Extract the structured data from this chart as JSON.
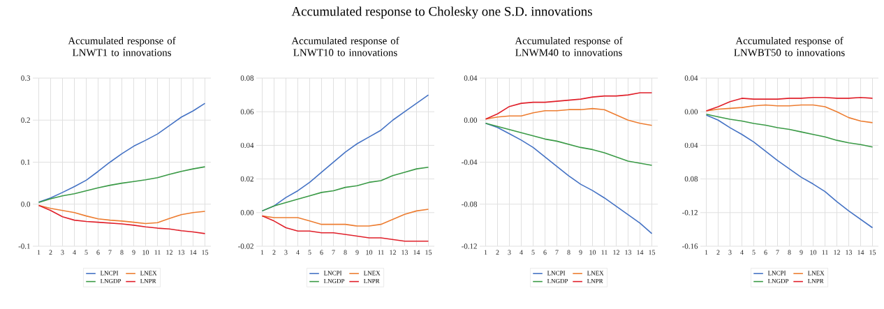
{
  "chart_data": [
    {
      "type": "line",
      "title": "Accumulated response of LNWT1 to innovations",
      "annotations": [
        "Accumulated response to Cholesky one S.D. innovations"
      ],
      "categories": [
        "1",
        "2",
        "3",
        "4",
        "5",
        "6",
        "7",
        "8",
        "9",
        "10",
        "11",
        "12",
        "13",
        "14",
        "15"
      ],
      "ylim": [
        -0.1,
        0.3
      ],
      "yticks": [
        {
          "value": -0.1,
          "label": "-0.1"
        },
        {
          "value": 0,
          "label": "0.0"
        },
        0.1,
        0.2,
        0.3
      ],
      "grid": true,
      "legend": "bottom",
      "series": [
        {
          "name": "LNCPI",
          "color": "#4472c4",
          "values": [
            0.005,
            0.015,
            0.028,
            0.042,
            0.057,
            0.078,
            0.1,
            0.12,
            0.138,
            0.152,
            0.167,
            0.187,
            0.207,
            0.222,
            0.24
          ]
        },
        {
          "name": "LNEX",
          "color": "#ed7d31",
          "values": [
            -0.003,
            -0.01,
            -0.015,
            -0.02,
            -0.028,
            -0.035,
            -0.038,
            -0.04,
            -0.043,
            -0.046,
            -0.044,
            -0.034,
            -0.025,
            -0.02,
            -0.017
          ]
        },
        {
          "name": "LNGDP",
          "color": "#3a9a46",
          "values": [
            0.004,
            0.013,
            0.02,
            0.025,
            0.032,
            0.039,
            0.045,
            0.05,
            0.054,
            0.058,
            0.063,
            0.071,
            0.078,
            0.084,
            0.089
          ]
        },
        {
          "name": "LNPR",
          "color": "#e0202a",
          "values": [
            -0.003,
            -0.015,
            -0.03,
            -0.038,
            -0.041,
            -0.043,
            -0.045,
            -0.047,
            -0.05,
            -0.054,
            -0.057,
            -0.059,
            -0.063,
            -0.066,
            -0.07
          ]
        }
      ]
    },
    {
      "type": "line",
      "title": "Accumulated response of LNWT10 to innovations",
      "categories": [
        "1",
        "2",
        "3",
        "4",
        "5",
        "6",
        "7",
        "8",
        "9",
        "10",
        "11",
        "12",
        "13",
        "14",
        "15"
      ],
      "ylim": [
        -0.02,
        0.08
      ],
      "yticks": [
        -0.02,
        {
          "value": 0,
          "label": "0.00"
        },
        0.02,
        0.04,
        0.06,
        0.08
      ],
      "grid": true,
      "legend": "bottom",
      "series": [
        {
          "name": "LNCPI",
          "color": "#4472c4",
          "values": [
            0.001,
            0.004,
            0.009,
            0.013,
            0.018,
            0.024,
            0.03,
            0.036,
            0.041,
            0.045,
            0.049,
            0.055,
            0.06,
            0.065,
            0.07
          ]
        },
        {
          "name": "LNEX",
          "color": "#ed7d31",
          "values": [
            -0.002,
            -0.003,
            -0.003,
            -0.003,
            -0.005,
            -0.007,
            -0.007,
            -0.007,
            -0.008,
            -0.008,
            -0.007,
            -0.004,
            -0.001,
            0.001,
            0.002
          ]
        },
        {
          "name": "LNGDP",
          "color": "#3a9a46",
          "values": [
            0.001,
            0.004,
            0.006,
            0.008,
            0.01,
            0.012,
            0.013,
            0.015,
            0.016,
            0.018,
            0.019,
            0.022,
            0.024,
            0.026,
            0.027
          ]
        },
        {
          "name": "LNPR",
          "color": "#e0202a",
          "values": [
            -0.002,
            -0.005,
            -0.009,
            -0.011,
            -0.011,
            -0.012,
            -0.012,
            -0.013,
            -0.014,
            -0.015,
            -0.015,
            -0.016,
            -0.017,
            -0.017,
            -0.017
          ]
        }
      ]
    },
    {
      "type": "line",
      "title": "Accumulated response of LNWM40 to innovations",
      "categories": [
        "1",
        "2",
        "3",
        "4",
        "5",
        "6",
        "7",
        "8",
        "9",
        "10",
        "11",
        "12",
        "13",
        "14",
        "15"
      ],
      "ylim": [
        -0.12,
        0.04
      ],
      "yticks": [
        -0.12,
        -0.08,
        -0.04,
        {
          "value": 0,
          "label": "0.00"
        },
        0.04
      ],
      "grid": true,
      "legend": "bottom",
      "series": [
        {
          "name": "LNCPI",
          "color": "#4472c4",
          "values": [
            -0.003,
            -0.007,
            -0.013,
            -0.019,
            -0.026,
            -0.035,
            -0.044,
            -0.053,
            -0.061,
            -0.067,
            -0.074,
            -0.082,
            -0.09,
            -0.098,
            -0.108
          ]
        },
        {
          "name": "LNEX",
          "color": "#ed7d31",
          "values": [
            0.001,
            0.003,
            0.004,
            0.004,
            0.007,
            0.009,
            0.009,
            0.01,
            0.01,
            0.011,
            0.01,
            0.005,
            0.0,
            -0.003,
            -0.005
          ]
        },
        {
          "name": "LNGDP",
          "color": "#3a9a46",
          "values": [
            -0.003,
            -0.006,
            -0.009,
            -0.012,
            -0.015,
            -0.018,
            -0.02,
            -0.023,
            -0.026,
            -0.028,
            -0.031,
            -0.035,
            -0.039,
            -0.041,
            -0.043
          ]
        },
        {
          "name": "LNPR",
          "color": "#e0202a",
          "values": [
            0.001,
            0.006,
            0.013,
            0.016,
            0.017,
            0.017,
            0.018,
            0.019,
            0.02,
            0.022,
            0.023,
            0.023,
            0.024,
            0.026,
            0.026
          ]
        }
      ]
    },
    {
      "type": "line",
      "title": "Accumulated response of LNWBT50 to innovations",
      "categories": [
        "1",
        "2",
        "3",
        "4",
        "5",
        "6",
        "7",
        "8",
        "9",
        "10",
        "11",
        "12",
        "13",
        "14",
        "15"
      ],
      "ylim": [
        -0.16,
        0.04
      ],
      "yticks": [
        -0.16,
        -0.12,
        {
          "value": -0.08,
          "label": "0.08"
        },
        {
          "value": -0.04,
          "label": "0.04"
        },
        {
          "value": 0,
          "label": "0.00"
        },
        0.04
      ],
      "grid": true,
      "legend": "bottom",
      "series": [
        {
          "name": "LNCPI",
          "color": "#4472c4",
          "values": [
            -0.004,
            -0.01,
            -0.019,
            -0.027,
            -0.036,
            -0.047,
            -0.058,
            -0.068,
            -0.078,
            -0.086,
            -0.095,
            -0.107,
            -0.118,
            -0.128,
            -0.138
          ]
        },
        {
          "name": "LNEX",
          "color": "#ed7d31",
          "values": [
            0.001,
            0.003,
            0.004,
            0.005,
            0.007,
            0.008,
            0.007,
            0.007,
            0.008,
            0.008,
            0.006,
            0.0,
            -0.007,
            -0.011,
            -0.013
          ]
        },
        {
          "name": "LNGDP",
          "color": "#3a9a46",
          "values": [
            -0.003,
            -0.006,
            -0.009,
            -0.011,
            -0.014,
            -0.016,
            -0.019,
            -0.021,
            -0.024,
            -0.027,
            -0.03,
            -0.034,
            -0.037,
            -0.039,
            -0.042
          ]
        },
        {
          "name": "LNPR",
          "color": "#e0202a",
          "values": [
            0.001,
            0.006,
            0.012,
            0.016,
            0.015,
            0.015,
            0.015,
            0.016,
            0.016,
            0.017,
            0.017,
            0.016,
            0.016,
            0.017,
            0.016
          ]
        }
      ]
    }
  ]
}
